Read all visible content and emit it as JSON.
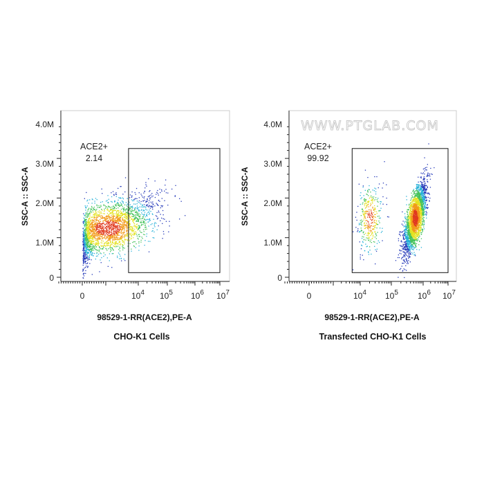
{
  "watermark": "WWW.PTGLAB.COM",
  "chart_data": [
    {
      "type": "scatter",
      "title": "CHO-K1 Cells",
      "xlabel": "98529-1-RR(ACE2),PE-A",
      "ylabel": "SSC-A :: SSC-A",
      "xscale": "biexponential (log above 10^3)",
      "xticks": [
        {
          "value": 0,
          "label": "0"
        },
        {
          "value": 10000,
          "base": "10",
          "exp": "4"
        },
        {
          "value": 100000,
          "base": "10",
          "exp": "5"
        },
        {
          "value": 1000000,
          "base": "10",
          "exp": "6"
        },
        {
          "value": 10000000,
          "base": "10",
          "exp": "7"
        }
      ],
      "yticks": [
        {
          "value": 0,
          "label": "0"
        },
        {
          "value": 1000000,
          "label": "1.0M"
        },
        {
          "value": 2000000,
          "label": "2.0M"
        },
        {
          "value": 3000000,
          "label": "3.0M"
        },
        {
          "value": 4000000,
          "label": "4.0M"
        }
      ],
      "ylim": [
        -300000,
        4300000
      ],
      "gate": {
        "name": "ACE2+",
        "value": "2.14",
        "x_range": [
          5000,
          10000000
        ],
        "y_range": [
          100000,
          3250000
        ]
      },
      "populations": [
        {
          "x_center": 1200,
          "x_spread": 0.75,
          "y_center": 1250000,
          "y_spread": 400000,
          "n": 2600,
          "corr": 0.55
        }
      ],
      "grid": false
    },
    {
      "type": "scatter",
      "title": "Transfected CHO-K1 Cells",
      "xlabel": "98529-1-RR(ACE2),PE-A",
      "ylabel": "SSC-A :: SSC-A",
      "xscale": "biexponential (log above 10^3)",
      "xticks": [
        {
          "value": 0,
          "label": "0"
        },
        {
          "value": 10000,
          "base": "10",
          "exp": "4"
        },
        {
          "value": 100000,
          "base": "10",
          "exp": "5"
        },
        {
          "value": 1000000,
          "base": "10",
          "exp": "6"
        },
        {
          "value": 10000000,
          "base": "10",
          "exp": "7"
        }
      ],
      "yticks": [
        {
          "value": 0,
          "label": "0"
        },
        {
          "value": 1000000,
          "label": "1.0M"
        },
        {
          "value": 2000000,
          "label": "2.0M"
        },
        {
          "value": 3000000,
          "label": "3.0M"
        },
        {
          "value": 4000000,
          "label": "4.0M"
        }
      ],
      "ylim": [
        -300000,
        4300000
      ],
      "gate": {
        "name": "ACE2+",
        "value": "99.92",
        "x_range": [
          5000,
          10000000
        ],
        "y_range": [
          100000,
          3250000
        ]
      },
      "populations": [
        {
          "x_center": 550000,
          "x_spread": 0.18,
          "y_center": 1500000,
          "y_spread": 450000,
          "n": 2800,
          "corr": 0.7
        },
        {
          "x_center": 20000,
          "x_spread": 0.2,
          "y_center": 1500000,
          "y_spread": 450000,
          "n": 380,
          "corr": 0.2
        }
      ],
      "grid": false
    }
  ]
}
